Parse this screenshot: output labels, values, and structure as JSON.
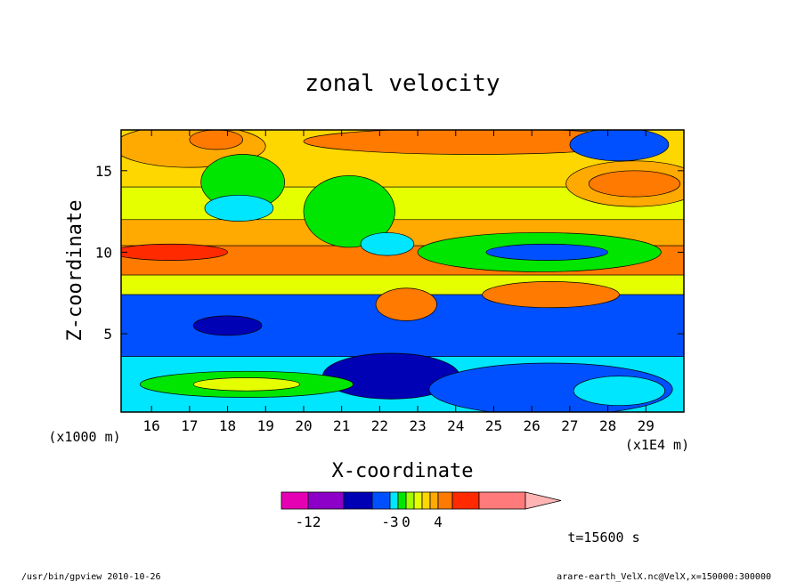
{
  "chart_data": {
    "type": "heatmap",
    "title": "zonal velocity",
    "xlabel": "X-coordinate",
    "ylabel": "Z-coordinate",
    "x_unit": "(x1E4 m)",
    "y_unit": "(x1000 m)",
    "xlim": [
      15.2,
      30
    ],
    "ylim": [
      0.2,
      17.5
    ],
    "x_ticks": [
      "16",
      "17",
      "18",
      "19",
      "20",
      "21",
      "22",
      "23",
      "24",
      "25",
      "26",
      "27",
      "28",
      "29"
    ],
    "y_ticks": [
      "5",
      "10",
      "15"
    ],
    "colorbar": {
      "tick_labels": [
        "-12",
        "-3",
        "0",
        "4"
      ],
      "colors": [
        "#e600b3",
        "#8c00c8",
        "#0000b4",
        "#0050ff",
        "#00e6ff",
        "#00e600",
        "#a0ff00",
        "#e6ff00",
        "#ffd700",
        "#ffaa00",
        "#ff7a00",
        "#ff2a00",
        "#ff7a7a",
        "#ffb4b4"
      ]
    },
    "time_label": "t=15600 s",
    "bands": [
      {
        "z_top": 17.5,
        "z_bot": 14.0,
        "color": "#ffd700"
      },
      {
        "z_top": 14.0,
        "z_bot": 12.0,
        "color": "#e6ff00"
      },
      {
        "z_top": 12.0,
        "z_bot": 10.4,
        "color": "#ffaa00"
      },
      {
        "z_top": 10.4,
        "z_bot": 8.6,
        "color": "#ff7a00"
      },
      {
        "z_top": 8.6,
        "z_bot": 7.4,
        "color": "#e6ff00"
      },
      {
        "z_top": 7.4,
        "z_bot": 3.6,
        "color": "#0050ff"
      },
      {
        "z_top": 3.6,
        "z_bot": 0.2,
        "color": "#00e6ff"
      }
    ],
    "blobs": [
      {
        "x": 17.0,
        "z": 16.5,
        "rx": 2.0,
        "rz": 1.3,
        "color": "#ffaa00"
      },
      {
        "x": 17.7,
        "z": 16.9,
        "rx": 0.7,
        "rz": 0.6,
        "color": "#ff7a00"
      },
      {
        "x": 24.5,
        "z": 16.8,
        "rx": 4.5,
        "rz": 0.8,
        "color": "#ff7a00"
      },
      {
        "x": 28.3,
        "z": 16.6,
        "rx": 1.3,
        "rz": 1.0,
        "color": "#0050ff"
      },
      {
        "x": 28.7,
        "z": 14.2,
        "rx": 1.8,
        "rz": 1.4,
        "color": "#ffaa00"
      },
      {
        "x": 28.7,
        "z": 14.2,
        "rx": 1.2,
        "rz": 0.8,
        "color": "#ff7a00"
      },
      {
        "x": 18.4,
        "z": 14.3,
        "rx": 1.1,
        "rz": 1.7,
        "color": "#00e600"
      },
      {
        "x": 18.3,
        "z": 12.7,
        "rx": 0.9,
        "rz": 0.8,
        "color": "#00e6ff"
      },
      {
        "x": 21.2,
        "z": 12.5,
        "rx": 1.2,
        "rz": 2.2,
        "color": "#00e600"
      },
      {
        "x": 22.2,
        "z": 10.5,
        "rx": 0.7,
        "rz": 0.7,
        "color": "#00e6ff"
      },
      {
        "x": 26.2,
        "z": 10.0,
        "rx": 3.2,
        "rz": 1.2,
        "color": "#00e600"
      },
      {
        "x": 26.4,
        "z": 10.0,
        "rx": 1.6,
        "rz": 0.5,
        "color": "#0050ff"
      },
      {
        "x": 16.5,
        "z": 10.0,
        "rx": 1.5,
        "rz": 0.5,
        "color": "#ff2a00"
      },
      {
        "x": 22.7,
        "z": 6.8,
        "rx": 0.8,
        "rz": 1.0,
        "color": "#ff7a00"
      },
      {
        "x": 26.5,
        "z": 7.4,
        "rx": 1.8,
        "rz": 0.8,
        "color": "#ff7a00"
      },
      {
        "x": 18.0,
        "z": 5.5,
        "rx": 0.9,
        "rz": 0.6,
        "color": "#0000b4"
      },
      {
        "x": 22.3,
        "z": 2.4,
        "rx": 1.8,
        "rz": 1.4,
        "color": "#0000b4"
      },
      {
        "x": 18.5,
        "z": 1.9,
        "rx": 2.8,
        "rz": 0.8,
        "color": "#00e600"
      },
      {
        "x": 18.5,
        "z": 1.9,
        "rx": 1.4,
        "rz": 0.4,
        "color": "#e6ff00"
      },
      {
        "x": 26.5,
        "z": 1.6,
        "rx": 3.2,
        "rz": 1.6,
        "color": "#0050ff"
      },
      {
        "x": 28.3,
        "z": 1.5,
        "rx": 1.2,
        "rz": 0.9,
        "color": "#00e6ff"
      }
    ]
  },
  "footer": {
    "left": "/usr/bin/gpview   2010-10-26",
    "right": "arare-earth_VelX.nc@VelX,x=150000:300000"
  }
}
